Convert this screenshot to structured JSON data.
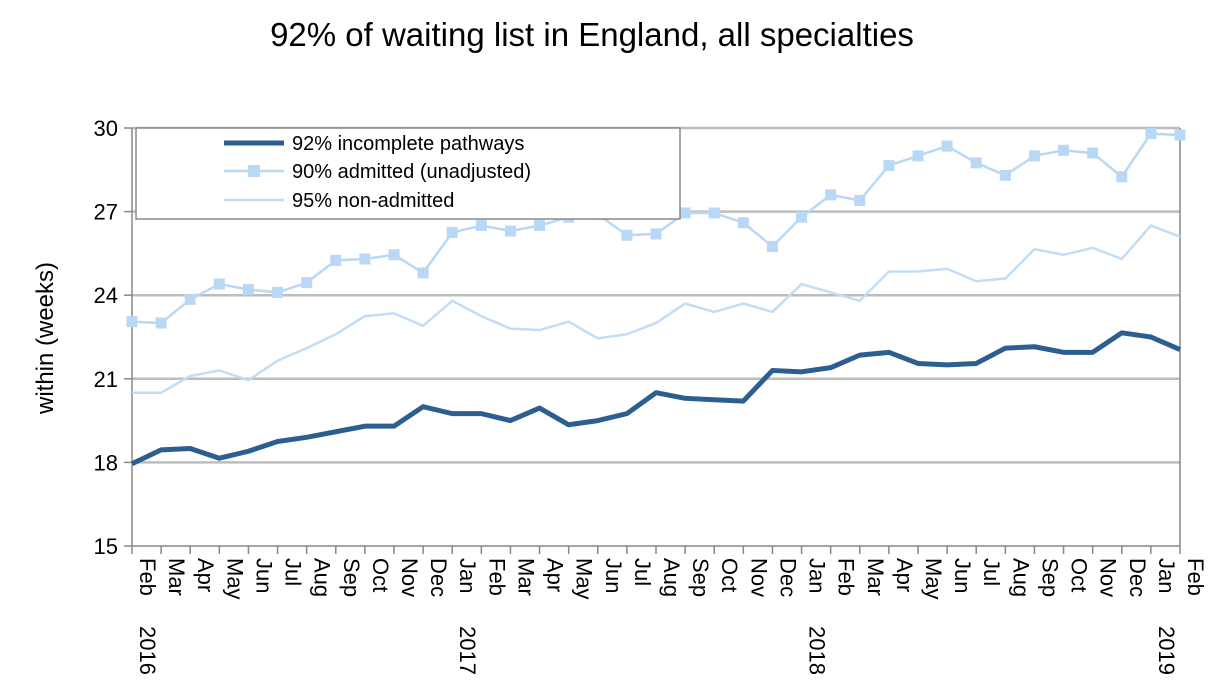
{
  "chart_data": {
    "type": "line",
    "title": "92% of waiting list in England, all specialties",
    "ylabel": "within  (weeks)",
    "xlabel": "",
    "ylim": [
      15,
      30
    ],
    "yticks": [
      15,
      18,
      21,
      24,
      27,
      30
    ],
    "grid": "horizontal",
    "legend_position": "top-left",
    "categories": [
      "Feb",
      "Mar",
      "Apr",
      "May",
      "Jun",
      "Jul",
      "Aug",
      "Sep",
      "Oct",
      "Nov",
      "Dec",
      "Jan",
      "Feb",
      "Mar",
      "Apr",
      "May",
      "Jun",
      "Jul",
      "Aug",
      "Sep",
      "Oct",
      "Nov",
      "Dec",
      "Jan",
      "Feb",
      "Mar",
      "Apr",
      "May",
      "Jun",
      "Jul",
      "Aug",
      "Sep",
      "Oct",
      "Nov",
      "Dec",
      "Jan",
      "Feb"
    ],
    "year_labels": [
      {
        "index": 0,
        "label": "2016"
      },
      {
        "index": 11,
        "label": "2017"
      },
      {
        "index": 23,
        "label": "2018"
      },
      {
        "index": 35,
        "label": "2019"
      }
    ],
    "series": [
      {
        "name": "92% incomplete pathways",
        "color": "#2c5f8f",
        "marker": "none",
        "values": [
          17.95,
          18.45,
          18.5,
          18.15,
          18.4,
          18.75,
          18.9,
          19.1,
          19.3,
          19.3,
          20.0,
          19.75,
          19.75,
          19.5,
          19.95,
          19.35,
          19.5,
          19.75,
          20.5,
          20.3,
          20.25,
          20.2,
          21.3,
          21.25,
          21.4,
          21.85,
          21.95,
          21.55,
          21.5,
          21.55,
          22.1,
          22.15,
          21.95,
          21.95,
          22.65,
          22.5,
          22.05
        ]
      },
      {
        "name": "90% admitted (unadjusted)",
        "color": "#b8d8f5",
        "marker": "square",
        "values": [
          23.05,
          23.0,
          23.85,
          24.4,
          24.2,
          24.1,
          24.45,
          25.25,
          25.3,
          25.45,
          24.8,
          26.25,
          26.5,
          26.3,
          26.5,
          26.8,
          26.9,
          26.15,
          26.2,
          26.95,
          26.95,
          26.6,
          25.75,
          26.8,
          27.6,
          27.4,
          28.65,
          29.0,
          29.35,
          28.75,
          28.3,
          29.0,
          29.2,
          29.1,
          28.25,
          29.8,
          29.75
        ]
      },
      {
        "name": "95% non-admitted",
        "color": "#c2ddf5",
        "marker": "none",
        "values": [
          20.5,
          20.5,
          21.1,
          21.3,
          20.95,
          21.65,
          22.1,
          22.6,
          23.25,
          23.35,
          22.9,
          23.8,
          23.25,
          22.8,
          22.75,
          23.05,
          22.45,
          22.6,
          23.0,
          23.7,
          23.4,
          23.7,
          23.4,
          24.4,
          24.1,
          23.8,
          24.85,
          24.85,
          24.95,
          24.5,
          24.6,
          25.65,
          25.45,
          25.7,
          25.3,
          26.5,
          26.1
        ]
      }
    ]
  }
}
